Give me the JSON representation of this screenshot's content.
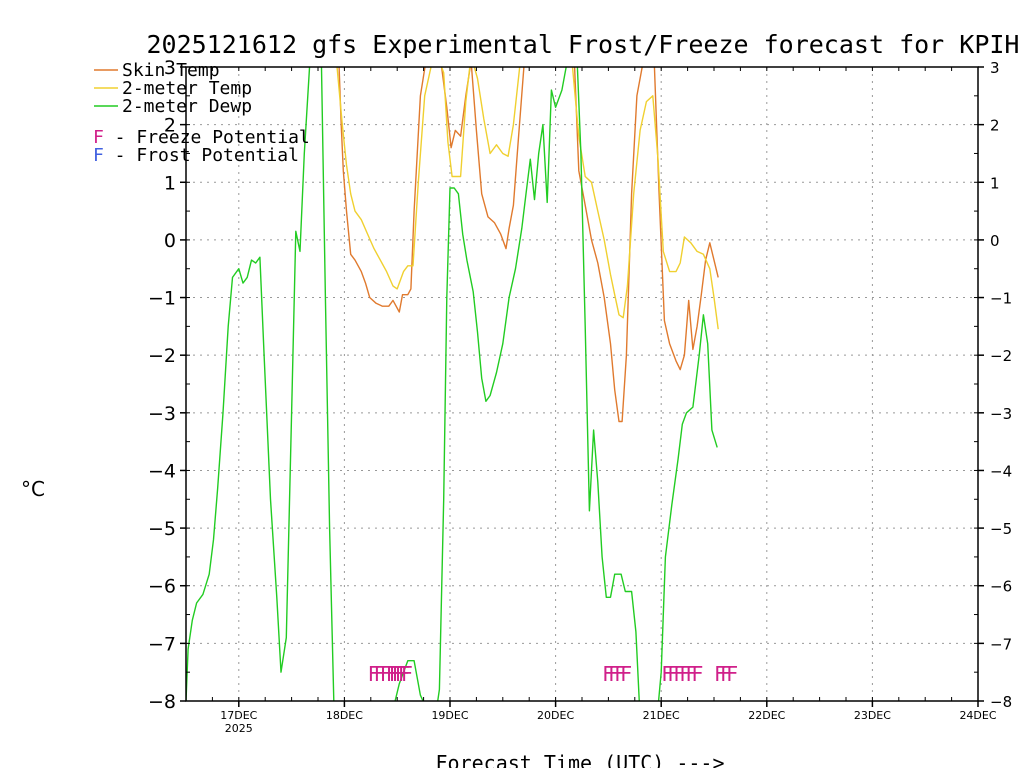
{
  "chart_data": {
    "type": "line",
    "title": "2025121612 gfs Experimental Frost/Freeze forecast for KPIH",
    "ylabel": "°C",
    "xlabel": "Forecast Time (UTC) --->",
    "ylim": [
      -8,
      3
    ],
    "xlim": [
      16.5,
      24.0
    ],
    "y_ticks": [
      3,
      2,
      1,
      0,
      -1,
      -2,
      -3,
      -4,
      -5,
      -6,
      -7,
      -8
    ],
    "x_ticks": [
      {
        "x": 17,
        "label": "17DEC",
        "sub": "2025"
      },
      {
        "x": 18,
        "label": "18DEC",
        "sub": ""
      },
      {
        "x": 19,
        "label": "19DEC",
        "sub": ""
      },
      {
        "x": 20,
        "label": "20DEC",
        "sub": ""
      },
      {
        "x": 21,
        "label": "21DEC",
        "sub": ""
      },
      {
        "x": 22,
        "label": "22DEC",
        "sub": ""
      },
      {
        "x": 23,
        "label": "23DEC",
        "sub": ""
      },
      {
        "x": 24,
        "label": "24DEC",
        "sub": ""
      }
    ],
    "grid": true,
    "legend": {
      "placement": "top-left",
      "entries": [
        {
          "label": "Skin Temp",
          "color": "#e07a2e"
        },
        {
          "label": "2-meter Temp",
          "color": "#f0d030"
        },
        {
          "label": "2-meter Dewp",
          "color": "#22cc22"
        }
      ],
      "markers": [
        {
          "letter": "F",
          "text": " - Freeze Potential",
          "color": "#d0208a"
        },
        {
          "letter": "F",
          "text": " - Frost Potential",
          "color": "#4060e0"
        }
      ]
    },
    "series": [
      {
        "name": "Skin Temp",
        "color": "#e07a2e",
        "points": [
          [
            17.72,
            3.3
          ],
          [
            17.78,
            3.0
          ],
          [
            17.9,
            3.1
          ],
          [
            17.95,
            3.0
          ],
          [
            17.97,
            2.0
          ],
          [
            17.99,
            1.2
          ],
          [
            18.02,
            0.5
          ],
          [
            18.06,
            -0.25
          ],
          [
            18.1,
            -0.35
          ],
          [
            18.16,
            -0.55
          ],
          [
            18.2,
            -0.75
          ],
          [
            18.24,
            -1.0
          ],
          [
            18.3,
            -1.1
          ],
          [
            18.36,
            -1.15
          ],
          [
            18.42,
            -1.15
          ],
          [
            18.46,
            -1.05
          ],
          [
            18.52,
            -1.25
          ],
          [
            18.55,
            -0.95
          ],
          [
            18.6,
            -0.95
          ],
          [
            18.63,
            -0.85
          ],
          [
            18.66,
            0.5
          ],
          [
            18.72,
            2.5
          ],
          [
            18.78,
            3.2
          ],
          [
            18.86,
            3.2
          ],
          [
            18.92,
            3.0
          ],
          [
            18.97,
            2.3
          ],
          [
            19.01,
            1.6
          ],
          [
            19.05,
            1.9
          ],
          [
            19.1,
            1.8
          ],
          [
            19.15,
            2.5
          ],
          [
            19.2,
            3.1
          ],
          [
            19.25,
            1.9
          ],
          [
            19.3,
            0.8
          ],
          [
            19.36,
            0.4
          ],
          [
            19.42,
            0.3
          ],
          [
            19.48,
            0.1
          ],
          [
            19.53,
            -0.15
          ],
          [
            19.56,
            0.2
          ],
          [
            19.6,
            0.6
          ],
          [
            19.65,
            1.8
          ],
          [
            19.7,
            3.0
          ],
          [
            19.78,
            3.2
          ],
          [
            19.9,
            3.3
          ],
          [
            20.1,
            3.3
          ],
          [
            20.18,
            3.0
          ],
          [
            20.22,
            1.2
          ],
          [
            20.28,
            0.6
          ],
          [
            20.34,
            0.0
          ],
          [
            20.4,
            -0.4
          ],
          [
            20.46,
            -1.0
          ],
          [
            20.52,
            -1.8
          ],
          [
            20.56,
            -2.6
          ],
          [
            20.6,
            -3.15
          ],
          [
            20.63,
            -3.15
          ],
          [
            20.67,
            -2.0
          ],
          [
            20.72,
            0.8
          ],
          [
            20.77,
            2.5
          ],
          [
            20.82,
            3.0
          ],
          [
            20.86,
            3.3
          ],
          [
            20.93,
            3.3
          ],
          [
            20.98,
            0.8
          ],
          [
            21.03,
            -1.4
          ],
          [
            21.08,
            -1.8
          ],
          [
            21.14,
            -2.1
          ],
          [
            21.18,
            -2.25
          ],
          [
            21.22,
            -2.0
          ],
          [
            21.26,
            -1.05
          ],
          [
            21.3,
            -1.9
          ],
          [
            21.34,
            -1.5
          ],
          [
            21.38,
            -0.95
          ],
          [
            21.42,
            -0.35
          ],
          [
            21.46,
            -0.05
          ],
          [
            21.5,
            -0.35
          ],
          [
            21.54,
            -0.65
          ]
        ]
      },
      {
        "name": "2-meter Temp",
        "color": "#f0d030",
        "points": [
          [
            17.92,
            3.2
          ],
          [
            17.98,
            2.0
          ],
          [
            18.02,
            1.3
          ],
          [
            18.06,
            0.8
          ],
          [
            18.1,
            0.5
          ],
          [
            18.16,
            0.35
          ],
          [
            18.22,
            0.1
          ],
          [
            18.28,
            -0.15
          ],
          [
            18.34,
            -0.35
          ],
          [
            18.4,
            -0.55
          ],
          [
            18.46,
            -0.8
          ],
          [
            18.5,
            -0.85
          ],
          [
            18.56,
            -0.55
          ],
          [
            18.6,
            -0.45
          ],
          [
            18.65,
            -0.45
          ],
          [
            18.7,
            1.0
          ],
          [
            18.76,
            2.5
          ],
          [
            18.82,
            3.0
          ],
          [
            18.88,
            3.2
          ],
          [
            18.94,
            2.9
          ],
          [
            18.98,
            1.7
          ],
          [
            19.02,
            1.1
          ],
          [
            19.06,
            1.1
          ],
          [
            19.1,
            1.1
          ],
          [
            19.15,
            2.4
          ],
          [
            19.2,
            3.2
          ],
          [
            19.26,
            2.8
          ],
          [
            19.32,
            2.1
          ],
          [
            19.38,
            1.5
          ],
          [
            19.44,
            1.65
          ],
          [
            19.5,
            1.5
          ],
          [
            19.55,
            1.45
          ],
          [
            19.6,
            2.0
          ],
          [
            19.66,
            3.0
          ],
          [
            19.74,
            3.2
          ],
          [
            19.9,
            3.3
          ],
          [
            20.12,
            3.3
          ],
          [
            20.16,
            3.0
          ],
          [
            20.22,
            1.8
          ],
          [
            20.28,
            1.1
          ],
          [
            20.34,
            1.0
          ],
          [
            20.4,
            0.5
          ],
          [
            20.46,
            0.0
          ],
          [
            20.52,
            -0.6
          ],
          [
            20.56,
            -0.95
          ],
          [
            20.6,
            -1.3
          ],
          [
            20.64,
            -1.35
          ],
          [
            20.68,
            -0.8
          ],
          [
            20.74,
            0.8
          ],
          [
            20.8,
            1.9
          ],
          [
            20.86,
            2.4
          ],
          [
            20.92,
            2.5
          ],
          [
            20.97,
            1.4
          ],
          [
            21.02,
            -0.2
          ],
          [
            21.08,
            -0.55
          ],
          [
            21.14,
            -0.55
          ],
          [
            21.18,
            -0.4
          ],
          [
            21.22,
            0.05
          ],
          [
            21.28,
            -0.05
          ],
          [
            21.34,
            -0.2
          ],
          [
            21.4,
            -0.25
          ],
          [
            21.46,
            -0.5
          ],
          [
            21.5,
            -1.0
          ],
          [
            21.54,
            -1.55
          ]
        ]
      },
      {
        "name": "2-meter Dewp",
        "color": "#22cc22",
        "points": [
          [
            16.5,
            -8.0
          ],
          [
            16.52,
            -7.1
          ],
          [
            16.56,
            -6.6
          ],
          [
            16.6,
            -6.3
          ],
          [
            16.66,
            -6.15
          ],
          [
            16.72,
            -5.8
          ],
          [
            16.76,
            -5.2
          ],
          [
            16.8,
            -4.3
          ],
          [
            16.85,
            -3.0
          ],
          [
            16.9,
            -1.5
          ],
          [
            16.94,
            -0.65
          ],
          [
            17.0,
            -0.5
          ],
          [
            17.04,
            -0.75
          ],
          [
            17.08,
            -0.65
          ],
          [
            17.12,
            -0.35
          ],
          [
            17.16,
            -0.4
          ],
          [
            17.2,
            -0.3
          ],
          [
            17.24,
            -2.0
          ],
          [
            17.3,
            -4.5
          ],
          [
            17.36,
            -6.2
          ],
          [
            17.4,
            -7.5
          ],
          [
            17.45,
            -6.9
          ],
          [
            17.5,
            -3.0
          ],
          [
            17.54,
            0.15
          ],
          [
            17.58,
            -0.2
          ],
          [
            17.62,
            1.5
          ],
          [
            17.68,
            3.3
          ],
          [
            17.74,
            3.3
          ],
          [
            17.78,
            3.3
          ],
          [
            17.82,
            -1.0
          ],
          [
            17.86,
            -5.0
          ],
          [
            17.9,
            -8.0
          ],
          [
            17.92,
            -8.3
          ],
          [
            18.4,
            -8.3
          ],
          [
            18.48,
            -8.0
          ],
          [
            18.52,
            -7.7
          ],
          [
            18.56,
            -7.5
          ],
          [
            18.6,
            -7.3
          ],
          [
            18.66,
            -7.3
          ],
          [
            18.72,
            -7.9
          ],
          [
            18.82,
            -8.3
          ],
          [
            18.86,
            -8.3
          ],
          [
            18.9,
            -7.8
          ],
          [
            18.94,
            -4.5
          ],
          [
            18.97,
            -1.0
          ],
          [
            19.0,
            0.9
          ],
          [
            19.04,
            0.9
          ],
          [
            19.08,
            0.8
          ],
          [
            19.12,
            0.1
          ],
          [
            19.16,
            -0.35
          ],
          [
            19.22,
            -0.9
          ],
          [
            19.26,
            -1.6
          ],
          [
            19.3,
            -2.4
          ],
          [
            19.34,
            -2.8
          ],
          [
            19.38,
            -2.7
          ],
          [
            19.44,
            -2.3
          ],
          [
            19.5,
            -1.8
          ],
          [
            19.56,
            -1.0
          ],
          [
            19.62,
            -0.5
          ],
          [
            19.68,
            0.2
          ],
          [
            19.72,
            0.8
          ],
          [
            19.76,
            1.4
          ],
          [
            19.8,
            0.7
          ],
          [
            19.84,
            1.5
          ],
          [
            19.88,
            2.0
          ],
          [
            19.92,
            0.65
          ],
          [
            19.96,
            2.6
          ],
          [
            20.0,
            2.3
          ],
          [
            20.06,
            2.6
          ],
          [
            20.12,
            3.2
          ],
          [
            20.2,
            3.3
          ],
          [
            20.24,
            1.5
          ],
          [
            20.28,
            -1.5
          ],
          [
            20.32,
            -4.7
          ],
          [
            20.36,
            -3.3
          ],
          [
            20.4,
            -4.2
          ],
          [
            20.44,
            -5.5
          ],
          [
            20.48,
            -6.2
          ],
          [
            20.52,
            -6.2
          ],
          [
            20.56,
            -5.8
          ],
          [
            20.62,
            -5.8
          ],
          [
            20.66,
            -6.1
          ],
          [
            20.72,
            -6.1
          ],
          [
            20.76,
            -6.8
          ],
          [
            20.8,
            -8.3
          ],
          [
            20.96,
            -8.3
          ],
          [
            21.0,
            -7.5
          ],
          [
            21.04,
            -5.5
          ],
          [
            21.1,
            -4.6
          ],
          [
            21.16,
            -3.8
          ],
          [
            21.2,
            -3.2
          ],
          [
            21.24,
            -3.0
          ],
          [
            21.3,
            -2.9
          ],
          [
            21.36,
            -2.0
          ],
          [
            21.4,
            -1.3
          ],
          [
            21.44,
            -1.8
          ],
          [
            21.48,
            -3.3
          ],
          [
            21.53,
            -3.6
          ]
        ]
      }
    ],
    "freeze_markers": [
      {
        "x": 18.22,
        "count": 6
      },
      {
        "x": 18.42,
        "count": 3
      },
      {
        "x": 20.44,
        "count": 4
      },
      {
        "x": 21.0,
        "count": 6
      },
      {
        "x": 21.5,
        "count": 3
      }
    ],
    "freeze_marker_y": -7.5
  }
}
